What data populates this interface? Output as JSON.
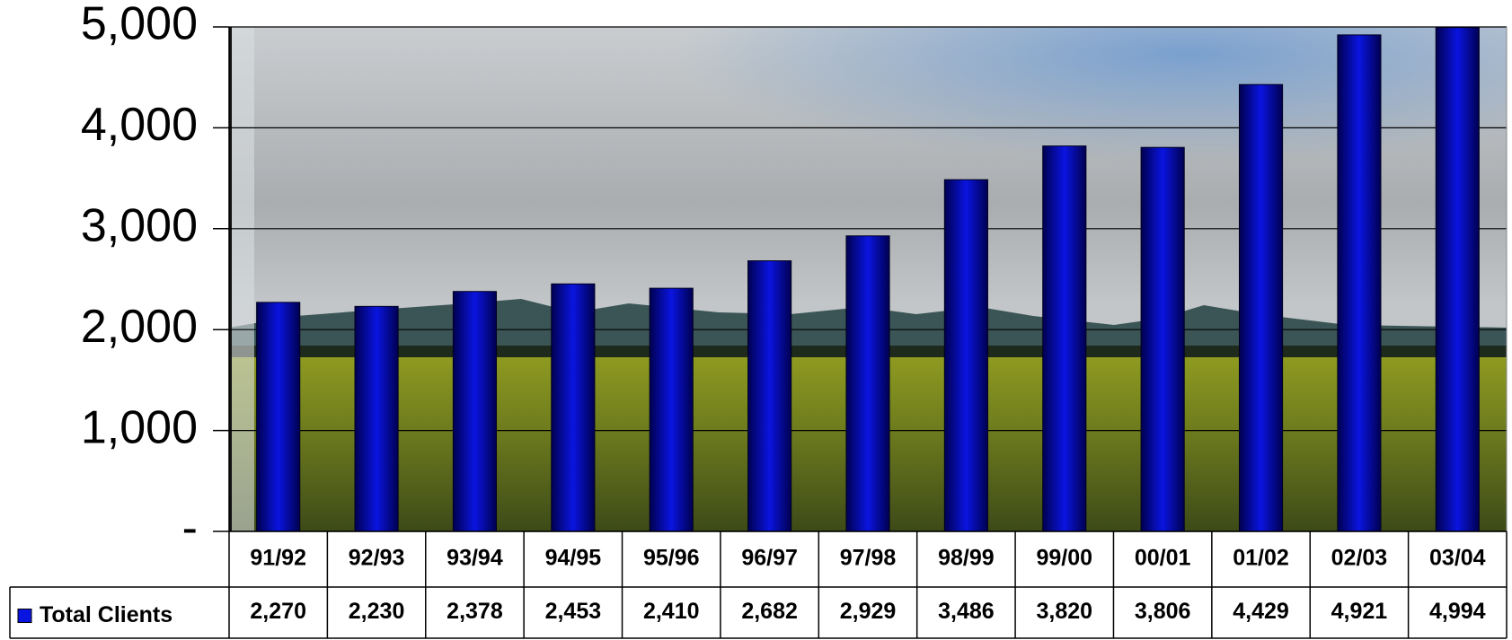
{
  "chart_data": {
    "type": "bar",
    "categories": [
      "91/92",
      "92/93",
      "93/94",
      "94/95",
      "95/96",
      "96/97",
      "97/98",
      "98/99",
      "99/00",
      "00/01",
      "01/02",
      "02/03",
      "03/04"
    ],
    "series": [
      {
        "name": "Total Clients",
        "color": "#0a14e0",
        "values": [
          2270,
          2230,
          2378,
          2453,
          2410,
          2682,
          2929,
          3486,
          3820,
          3806,
          4429,
          4921,
          4994
        ],
        "value_labels": [
          "2,270",
          "2,230",
          "2,378",
          "2,453",
          "2,410",
          "2,682",
          "2,929",
          "3,486",
          "3,820",
          "3,806",
          "4,429",
          "4,921",
          "4,994"
        ]
      }
    ],
    "ylim": [
      0,
      5000
    ],
    "yticks": [
      {
        "value": 0,
        "label": "-"
      },
      {
        "value": 1000,
        "label": "1,000"
      },
      {
        "value": 2000,
        "label": "2,000"
      },
      {
        "value": 3000,
        "label": "3,000"
      },
      {
        "value": 4000,
        "label": "4,000"
      },
      {
        "value": 5000,
        "label": "5,000"
      }
    ],
    "grid": true
  }
}
